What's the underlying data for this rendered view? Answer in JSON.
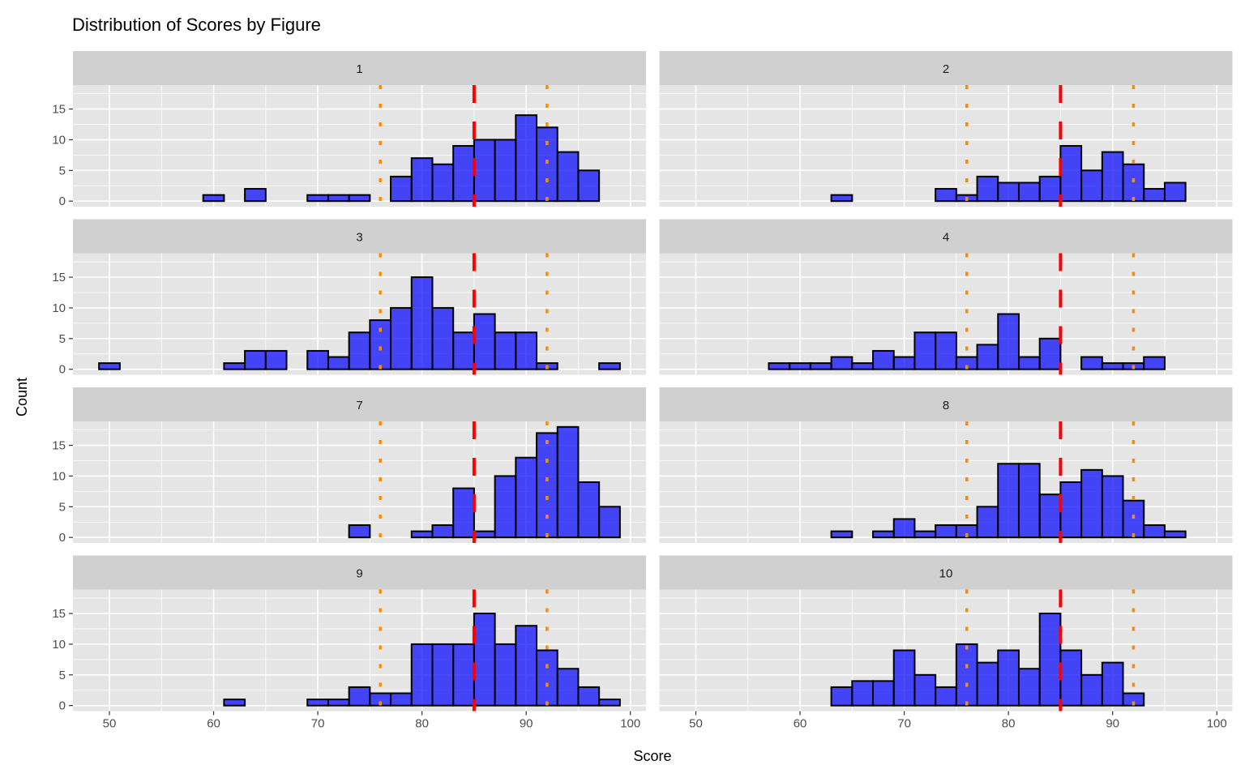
{
  "chart_data": {
    "type": "bar",
    "subtype": "faceted-histogram",
    "title": "Distribution of Scores by Figure",
    "xlabel": "Score",
    "ylabel": "Count",
    "xlim": [
      49,
      99
    ],
    "ylim": [
      0,
      18
    ],
    "bin_width": 2,
    "bin_centers": [
      50,
      52,
      54,
      56,
      58,
      60,
      62,
      64,
      66,
      68,
      70,
      72,
      74,
      76,
      78,
      80,
      82,
      84,
      86,
      88,
      90,
      92,
      94,
      96,
      98
    ],
    "x_ticks": [
      "50",
      "60",
      "70",
      "80",
      "90",
      "100"
    ],
    "y_ticks": [
      "0",
      "5",
      "10",
      "15"
    ],
    "grid": true,
    "colors": {
      "bar_fill": "#0000FF",
      "bar_alpha": 0.7,
      "bar_stroke": "#000000",
      "mean_line": "#FF0000",
      "band_line": "#FF8C00",
      "panel_bg": "#E5E5E5",
      "strip_bg": "#D0D0D0"
    },
    "reference_lines": [
      {
        "name": "center",
        "x": 85,
        "style": "dashed",
        "color": "#FF0000"
      },
      {
        "name": "lower",
        "x": 76,
        "style": "dotted",
        "color": "#FF8C00"
      },
      {
        "name": "upper",
        "x": 92,
        "style": "dotted",
        "color": "#FF8C00"
      }
    ],
    "facets": [
      {
        "label": "1",
        "counts": [
          0,
          0,
          0,
          0,
          0,
          1,
          0,
          2,
          0,
          0,
          1,
          1,
          1,
          0,
          4,
          7,
          6,
          9,
          10,
          10,
          14,
          12,
          8,
          5,
          0
        ]
      },
      {
        "label": "2",
        "counts": [
          0,
          0,
          0,
          0,
          0,
          0,
          0,
          1,
          0,
          0,
          0,
          0,
          2,
          1,
          4,
          3,
          3,
          4,
          9,
          5,
          8,
          6,
          2,
          3,
          0
        ]
      },
      {
        "label": "3",
        "counts": [
          1,
          0,
          0,
          0,
          0,
          0,
          1,
          3,
          3,
          0,
          3,
          2,
          6,
          8,
          10,
          15,
          10,
          6,
          9,
          6,
          6,
          1,
          0,
          0,
          1
        ]
      },
      {
        "label": "4",
        "counts": [
          0,
          0,
          0,
          0,
          1,
          1,
          1,
          2,
          1,
          3,
          2,
          6,
          6,
          2,
          4,
          9,
          2,
          5,
          0,
          2,
          1,
          1,
          2,
          0,
          0
        ]
      },
      {
        "label": "7",
        "counts": [
          0,
          0,
          0,
          0,
          0,
          0,
          0,
          0,
          0,
          0,
          0,
          0,
          2,
          0,
          0,
          1,
          2,
          8,
          1,
          10,
          13,
          17,
          18,
          9,
          5
        ]
      },
      {
        "label": "8",
        "counts": [
          0,
          0,
          0,
          0,
          0,
          0,
          0,
          1,
          0,
          1,
          3,
          1,
          2,
          2,
          5,
          12,
          12,
          7,
          9,
          11,
          10,
          6,
          2,
          1,
          0
        ]
      },
      {
        "label": "9",
        "counts": [
          0,
          0,
          0,
          0,
          0,
          0,
          1,
          0,
          0,
          0,
          1,
          1,
          3,
          2,
          2,
          10,
          10,
          10,
          15,
          10,
          13,
          9,
          6,
          3,
          1
        ]
      },
      {
        "label": "10",
        "counts": [
          0,
          0,
          0,
          0,
          0,
          0,
          0,
          3,
          4,
          4,
          9,
          5,
          3,
          10,
          7,
          9,
          6,
          15,
          9,
          5,
          7,
          2,
          0,
          0,
          0
        ]
      }
    ]
  }
}
